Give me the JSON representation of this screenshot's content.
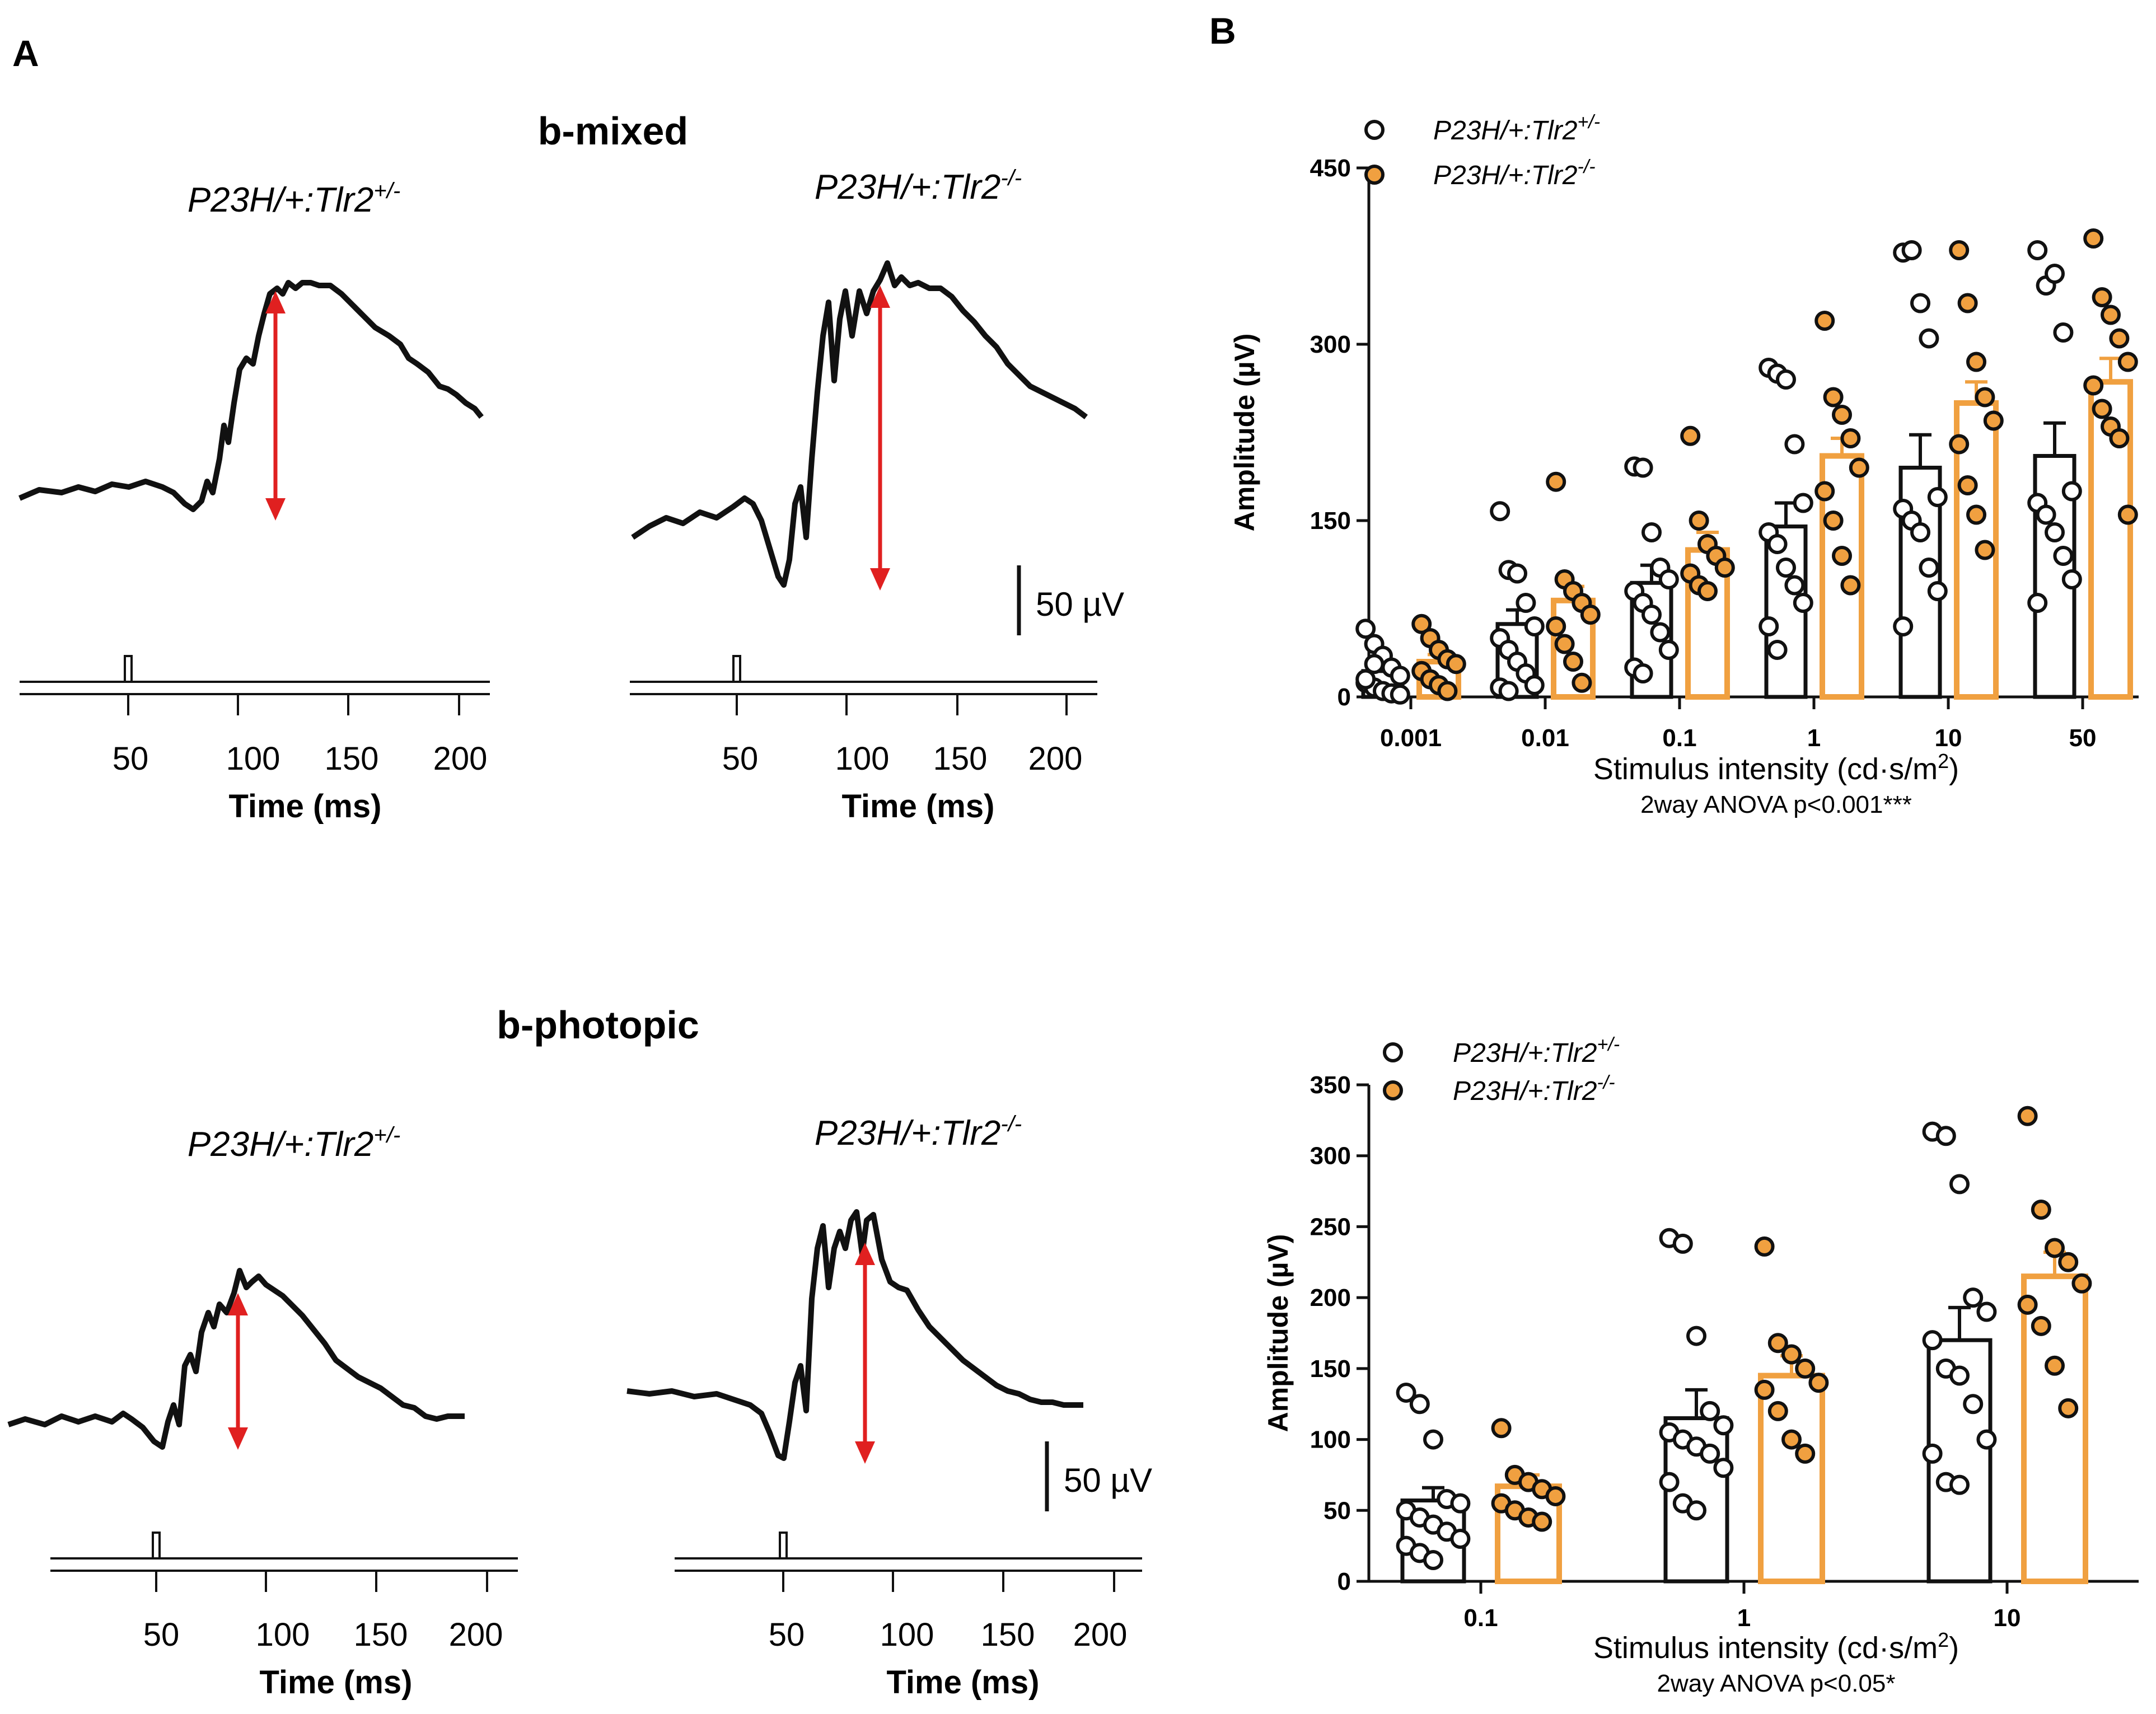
{
  "panel_labels": {
    "a": "A",
    "b": "B"
  },
  "traces": {
    "mixed_title": "b-mixed",
    "photopic_title": "b-photopic",
    "genotype_het_base": "P23H/+:Tlr2",
    "genotype_het_sup": "+/-",
    "genotype_ko_base": "P23H/+:Tlr2",
    "genotype_ko_sup": "-/-",
    "time_ticks": [
      "50",
      "100",
      "150",
      "200"
    ],
    "time_label": "Time (ms)",
    "scale_bar_label": "50 µV",
    "colors": {
      "trace": "#111111",
      "arrow": "#e02020"
    }
  },
  "chart_data": [
    {
      "type": "bar",
      "title": "b-mixed",
      "xlabel": "Stimulus intensity (cd·s/m2)",
      "xlabel_base": "Stimulus intensity (cd·s/m",
      "xlabel_sup": "2",
      "xlabel_end": ")",
      "ylabel": "Amplitude (µV)",
      "ylim": [
        0,
        450
      ],
      "yticks": [
        0,
        150,
        300,
        450
      ],
      "categories": [
        "0.001",
        "0.01",
        "0.1",
        "1",
        "10",
        "50"
      ],
      "annotation": "2way  ANOVA  p<0.001***",
      "legend_position": "top-left",
      "series": [
        {
          "name": "P23H/+:Tlr2+/-",
          "color": "#ffffff",
          "edge": "#111111",
          "values": [
            22,
            62,
            97,
            145,
            195,
            205
          ],
          "errors": [
            8,
            12,
            15,
            20,
            28,
            28
          ],
          "points": [
            [
              58,
              45,
              35,
              25,
              18,
              12,
              8,
              5,
              3,
              2,
              15,
              28
            ],
            [
              158,
              108,
              105,
              80,
              60,
              50,
              40,
              30,
              20,
              10,
              8,
              5
            ],
            [
              196,
              195,
              140,
              110,
              100,
              90,
              80,
              70,
              55,
              40,
              25,
              20
            ],
            [
              280,
              275,
              270,
              215,
              165,
              140,
              130,
              110,
              95,
              80,
              60,
              40
            ],
            [
              378,
              380,
              335,
              305,
              170,
              160,
              150,
              140,
              110,
              90,
              60
            ],
            [
              380,
              350,
              360,
              310,
              175,
              165,
              155,
              140,
              120,
              100,
              80
            ]
          ]
        },
        {
          "name": "P23H/+:Tlr2-/-",
          "color": "#f0a040",
          "edge": "#111111",
          "values": [
            30,
            82,
            125,
            205,
            250,
            268
          ],
          "errors": [
            6,
            12,
            15,
            15,
            18,
            20
          ],
          "points": [
            [
              62,
              50,
              40,
              32,
              28,
              22,
              15,
              10,
              5
            ],
            [
              183,
              100,
              90,
              80,
              70,
              60,
              45,
              30,
              12
            ],
            [
              222,
              150,
              130,
              120,
              110,
              105,
              95,
              90
            ],
            [
              320,
              255,
              240,
              220,
              195,
              175,
              150,
              120,
              95
            ],
            [
              380,
              335,
              285,
              255,
              235,
              215,
              180,
              155,
              125
            ],
            [
              390,
              340,
              325,
              305,
              285,
              265,
              245,
              230,
              220,
              155
            ]
          ]
        }
      ]
    },
    {
      "type": "bar",
      "title": "b-photopic",
      "xlabel": "Stimulus intensity (cd·s/m2)",
      "xlabel_base": "Stimulus intensity (cd·s/m",
      "xlabel_sup": "2",
      "xlabel_end": ")",
      "ylabel": "Amplitude (µV)",
      "ylim": [
        0,
        350
      ],
      "yticks": [
        0,
        50,
        100,
        150,
        200,
        250,
        300,
        350
      ],
      "categories": [
        "0.1",
        "1",
        "10"
      ],
      "annotation": "2way  ANOVA  p<0.05*",
      "legend_position": "top-left",
      "series": [
        {
          "name": "P23H/+:Tlr2+/-",
          "color": "#ffffff",
          "edge": "#111111",
          "values": [
            57,
            115,
            170
          ],
          "errors": [
            9,
            20,
            23
          ],
          "points": [
            [
              133,
              125,
              100,
              58,
              55,
              50,
              45,
              40,
              35,
              30,
              25,
              20,
              15
            ],
            [
              242,
              238,
              173,
              120,
              110,
              105,
              100,
              95,
              90,
              80,
              70,
              55,
              50
            ],
            [
              317,
              314,
              280,
              200,
              190,
              170,
              150,
              145,
              125,
              100,
              90,
              70,
              68
            ]
          ]
        },
        {
          "name": "P23H/+:Tlr2-/-",
          "color": "#f0a040",
          "edge": "#111111",
          "values": [
            67,
            145,
            215
          ],
          "errors": [
            8,
            14,
            17
          ],
          "points": [
            [
              108,
              75,
              70,
              65,
              60,
              55,
              50,
              45,
              42
            ],
            [
              236,
              168,
              160,
              150,
              140,
              135,
              120,
              100,
              90
            ],
            [
              328,
              262,
              235,
              225,
              210,
              195,
              180,
              152,
              122
            ]
          ]
        }
      ]
    }
  ]
}
